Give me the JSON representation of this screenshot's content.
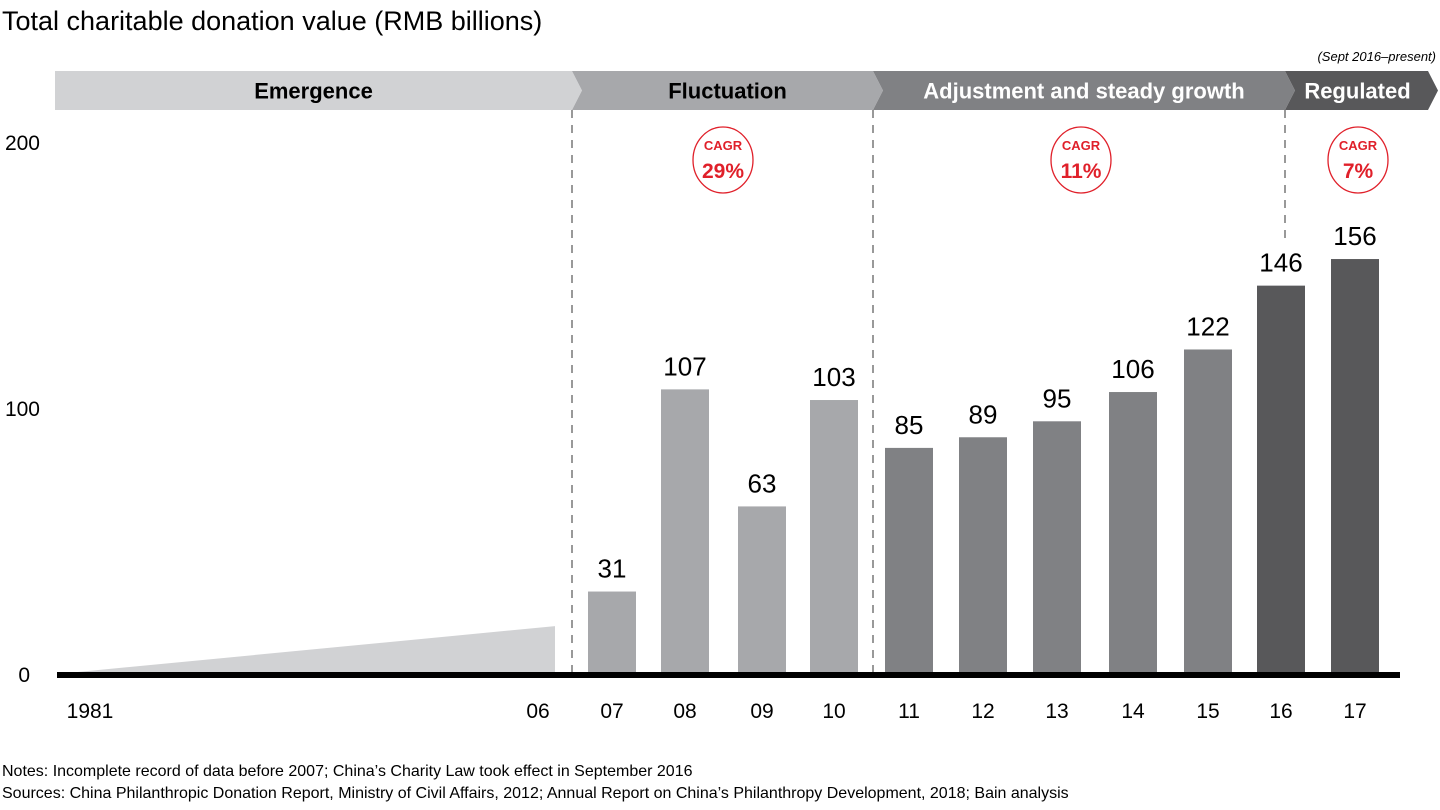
{
  "chart_data": {
    "type": "bar",
    "title": "Total charitable donation value (RMB billions)",
    "xlabel": "",
    "ylabel": "",
    "ylim": [
      0,
      200
    ],
    "yticks": [
      0,
      100,
      200
    ],
    "grid": false,
    "categories": [
      "1981",
      "06",
      "07",
      "08",
      "09",
      "10",
      "11",
      "12",
      "13",
      "14",
      "15",
      "16",
      "17"
    ],
    "emergence_wedge": {
      "from_label": "1981",
      "to_label": "06",
      "start_value": 0,
      "end_value_approx": 18,
      "note": "unlabeled shaded area representing incomplete data 1981–2006"
    },
    "bars": [
      {
        "label": "07",
        "value": 31,
        "phase": "Fluctuation"
      },
      {
        "label": "08",
        "value": 107,
        "phase": "Fluctuation"
      },
      {
        "label": "09",
        "value": 63,
        "phase": "Fluctuation"
      },
      {
        "label": "10",
        "value": 103,
        "phase": "Fluctuation"
      },
      {
        "label": "11",
        "value": 85,
        "phase": "Adjustment and steady growth"
      },
      {
        "label": "12",
        "value": 89,
        "phase": "Adjustment and steady growth"
      },
      {
        "label": "13",
        "value": 95,
        "phase": "Adjustment and steady growth"
      },
      {
        "label": "14",
        "value": 106,
        "phase": "Adjustment and steady growth"
      },
      {
        "label": "15",
        "value": 122,
        "phase": "Adjustment and steady growth"
      },
      {
        "label": "16",
        "value": 146,
        "phase": "Regulated"
      },
      {
        "label": "17",
        "value": 156,
        "phase": "Regulated"
      }
    ],
    "phases": [
      {
        "name": "Emergence",
        "color": "#d1d2d4",
        "text_color": "#000000"
      },
      {
        "name": "Fluctuation",
        "color": "#a7a8ab",
        "text_color": "#000000"
      },
      {
        "name": "Adjustment and steady growth",
        "color": "#808184",
        "text_color": "#ffffff"
      },
      {
        "name": "Regulated",
        "color": "#58585a",
        "text_color": "#ffffff",
        "note": "(Sept 2016–present)"
      }
    ],
    "cagr": [
      {
        "label": "CAGR",
        "value": "29%",
        "phase": "Fluctuation"
      },
      {
        "label": "CAGR",
        "value": "11%",
        "phase": "Adjustment and steady growth"
      },
      {
        "label": "CAGR",
        "value": "7%",
        "phase": "Regulated"
      }
    ],
    "accent_color": "#e0202a"
  },
  "notes": "Notes: Incomplete record of data before 2007; China’s Charity Law took effect in September 2016",
  "sources": "Sources: China Philanthropic Donation Report, Ministry of Civil Affairs, 2012; Annual Report on China’s Philanthropy Development, 2018; Bain analysis"
}
